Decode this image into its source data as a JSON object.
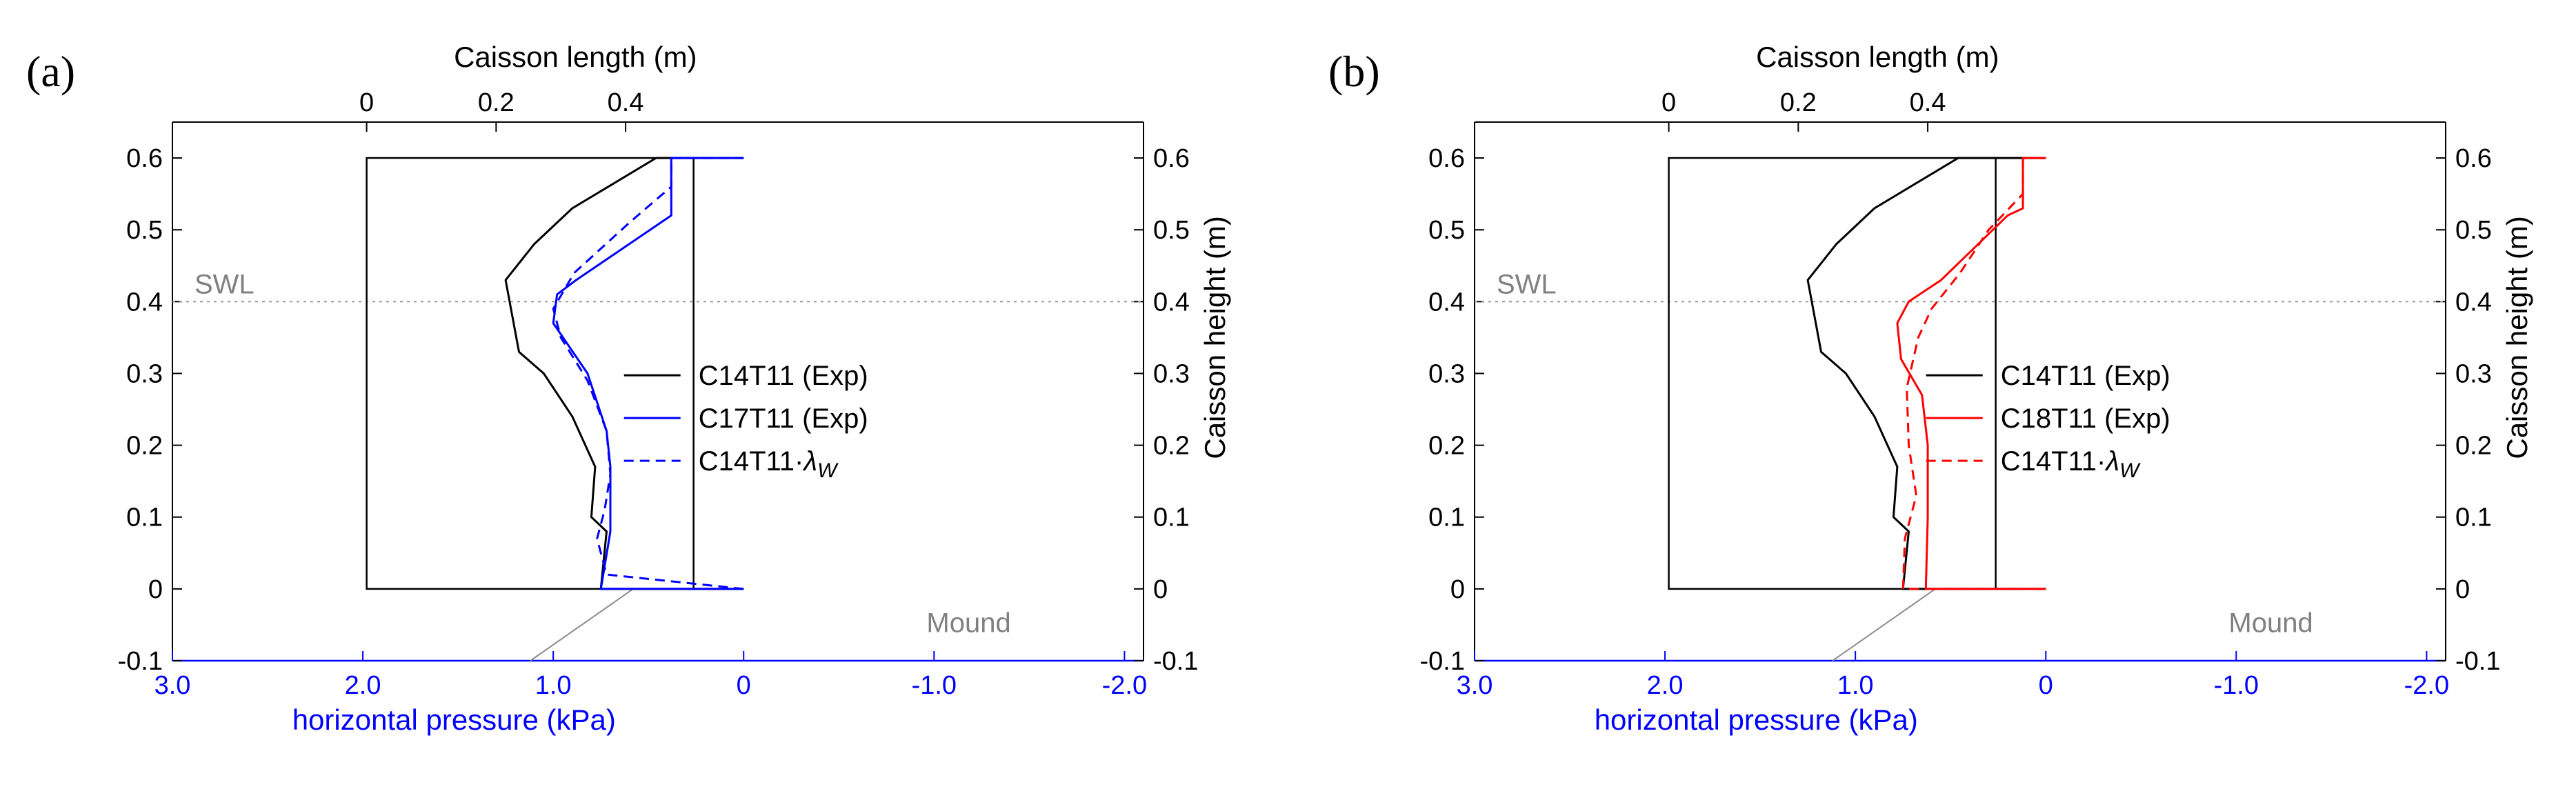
{
  "chart_data": [
    {
      "panel_label": "(a)",
      "type": "line",
      "top_axis_label": "Caisson length (m)",
      "top_ticks": [
        "0",
        "0.2",
        "0.4"
      ],
      "top_tick_values": [
        0,
        0.2,
        0.4
      ],
      "top_xlim": [
        -0.3,
        1.2
      ],
      "bottom_axis_label": "horizontal pressure (kPa)",
      "bottom_ticks": [
        "3.0",
        "2.0",
        "1.0",
        "0",
        "-1.0",
        "-2.0"
      ],
      "bottom_tick_values": [
        3.0,
        2.0,
        1.0,
        0,
        -1.0,
        -2.0
      ],
      "bottom_xlim": [
        3.0,
        -2.1
      ],
      "left_ticks": [
        "0.6",
        "0.5",
        "0.4",
        "0.3",
        "0.2",
        "0.1",
        "0",
        "-0.1"
      ],
      "right_ticks": [
        "0.6",
        "0.5",
        "0.4",
        "0.3",
        "0.2",
        "0.1",
        "0",
        "-0.1"
      ],
      "tick_values": [
        0.6,
        0.5,
        0.4,
        0.3,
        0.2,
        0.1,
        0,
        -0.1
      ],
      "ylim": [
        -0.1,
        0.65
      ],
      "ylabel_right": "Caisson height (m)",
      "swl_label": "SWL",
      "swl_level": 0.4,
      "mound_label": "Mound",
      "series": [
        {
          "name": "C14T11 (Exp)",
          "color": "#000000",
          "dash": "solid",
          "pressure": [
            0.75,
            0.72,
            0.8,
            0.78,
            0.9,
            1.05,
            1.18,
            1.25,
            1.1,
            0.9,
            0.46,
            0.0
          ],
          "height": [
            0.0,
            0.08,
            0.1,
            0.17,
            0.24,
            0.3,
            0.33,
            0.43,
            0.48,
            0.53,
            0.6,
            0.6
          ]
        },
        {
          "name": "C17T11 (Exp)",
          "color": "#0000ff",
          "dash": "solid",
          "pressure": [
            0.75,
            0.7,
            0.7,
            0.72,
            0.82,
            1.0,
            0.98,
            0.88,
            0.38,
            0.38,
            0.38,
            0.0
          ],
          "height": [
            0.0,
            0.08,
            0.17,
            0.22,
            0.3,
            0.37,
            0.41,
            0.43,
            0.52,
            0.6,
            0.6,
            0.6
          ]
        },
        {
          "name": "C14T11·",
          "lambda": "λ",
          "lambda_sub": "W",
          "color": "#0000ff",
          "dash": "dashed",
          "pressure": [
            0.72,
            0.77,
            0.73,
            0.7,
            0.72,
            0.82,
            0.96,
            1.0,
            0.89,
            0.6,
            0.38,
            0.38,
            0.0
          ],
          "height": [
            0.02,
            0.07,
            0.11,
            0.16,
            0.22,
            0.29,
            0.35,
            0.39,
            0.44,
            0.51,
            0.56,
            0.6,
            0.6
          ]
        }
      ]
    },
    {
      "panel_label": "(b)",
      "type": "line",
      "top_axis_label": "Caisson length (m)",
      "top_ticks": [
        "0",
        "0.2",
        "0.4"
      ],
      "top_tick_values": [
        0,
        0.2,
        0.4
      ],
      "top_xlim": [
        -0.3,
        1.2
      ],
      "bottom_axis_label": "horizontal pressure (kPa)",
      "bottom_ticks": [
        "3.0",
        "2.0",
        "1.0",
        "0",
        "-1.0",
        "-2.0"
      ],
      "bottom_tick_values": [
        3.0,
        2.0,
        1.0,
        0,
        -1.0,
        -2.0
      ],
      "bottom_xlim": [
        3.0,
        -2.1
      ],
      "left_ticks": [
        "0.6",
        "0.5",
        "0.4",
        "0.3",
        "0.2",
        "0.1",
        "0",
        "-0.1"
      ],
      "right_ticks": [
        "0.6",
        "0.5",
        "0.4",
        "0.3",
        "0.2",
        "0.1",
        "0",
        "-0.1"
      ],
      "tick_values": [
        0.6,
        0.5,
        0.4,
        0.3,
        0.2,
        0.1,
        0,
        -0.1
      ],
      "ylim": [
        -0.1,
        0.65
      ],
      "ylabel_right": "Caisson height (m)",
      "swl_label": "SWL",
      "swl_level": 0.4,
      "mound_label": "Mound",
      "series": [
        {
          "name": "C14T11 (Exp)",
          "color": "#000000",
          "dash": "solid",
          "pressure": [
            0.75,
            0.72,
            0.8,
            0.78,
            0.9,
            1.05,
            1.18,
            1.25,
            1.1,
            0.9,
            0.46,
            0.0
          ],
          "height": [
            0.0,
            0.08,
            0.1,
            0.17,
            0.24,
            0.3,
            0.33,
            0.43,
            0.48,
            0.53,
            0.6,
            0.6
          ]
        },
        {
          "name": "C18T11 (Exp)",
          "color": "#ff0000",
          "dash": "solid",
          "pressure": [
            0.63,
            0.62,
            0.62,
            0.65,
            0.76,
            0.78,
            0.72,
            0.55,
            0.2,
            0.12,
            0.12,
            0.0
          ],
          "height": [
            0.0,
            0.1,
            0.2,
            0.27,
            0.32,
            0.37,
            0.4,
            0.43,
            0.52,
            0.53,
            0.6,
            0.6
          ]
        },
        {
          "name": "C14T11·",
          "lambda": "λ",
          "lambda_sub": "W",
          "color": "#ff0000",
          "dash": "dashed",
          "pressure": [
            0.75,
            0.74,
            0.68,
            0.72,
            0.73,
            0.67,
            0.6,
            0.45,
            0.3,
            0.12,
            0.12,
            0.0
          ],
          "height": [
            0.0,
            0.07,
            0.13,
            0.2,
            0.28,
            0.35,
            0.39,
            0.44,
            0.5,
            0.55,
            0.6,
            0.6
          ]
        }
      ]
    }
  ]
}
